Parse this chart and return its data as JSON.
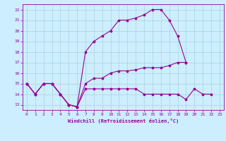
{
  "xlabel": "Windchill (Refroidissement éolien,°C)",
  "bg_color": "#cceeff",
  "line_color": "#990099",
  "grid_color": "#aad4d4",
  "xlim": [
    -0.5,
    23.5
  ],
  "ylim": [
    12.5,
    22.5
  ],
  "xticks": [
    0,
    1,
    2,
    3,
    4,
    5,
    6,
    7,
    8,
    9,
    10,
    11,
    12,
    13,
    14,
    15,
    16,
    17,
    18,
    19,
    20,
    21,
    22,
    23
  ],
  "yticks": [
    13,
    14,
    15,
    16,
    17,
    18,
    19,
    20,
    21,
    22
  ],
  "upper_x": [
    0,
    1,
    2,
    3,
    4,
    5,
    6,
    7,
    8,
    9,
    10,
    11,
    12,
    13,
    14,
    15,
    16,
    17,
    18,
    19
  ],
  "upper_y": [
    15.0,
    14.0,
    15.0,
    15.0,
    14.0,
    13.0,
    12.8,
    18.0,
    19.0,
    19.5,
    20.0,
    21.0,
    21.0,
    21.2,
    21.5,
    22.0,
    22.0,
    21.0,
    19.5,
    17.0
  ],
  "mid_x": [
    0,
    1,
    2,
    3,
    4,
    5,
    6,
    7,
    8,
    9,
    10,
    11,
    12,
    13,
    14,
    15,
    16,
    17,
    18,
    19
  ],
  "mid_y": [
    15.0,
    14.0,
    15.0,
    15.0,
    14.0,
    13.0,
    12.8,
    15.0,
    15.5,
    15.5,
    16.0,
    16.2,
    16.2,
    16.3,
    16.5,
    16.5,
    16.5,
    16.7,
    17.0,
    17.0
  ],
  "low_x": [
    0,
    1,
    2,
    3,
    4,
    5,
    6,
    7,
    8,
    9,
    10,
    11,
    12,
    13,
    14,
    15,
    16,
    17,
    18,
    19,
    20,
    21,
    22
  ],
  "low_y": [
    15.0,
    14.0,
    15.0,
    15.0,
    14.0,
    13.0,
    12.8,
    14.5,
    14.5,
    14.5,
    14.5,
    14.5,
    14.5,
    14.5,
    14.0,
    14.0,
    14.0,
    14.0,
    14.0,
    13.5,
    14.5,
    14.0,
    14.0
  ]
}
